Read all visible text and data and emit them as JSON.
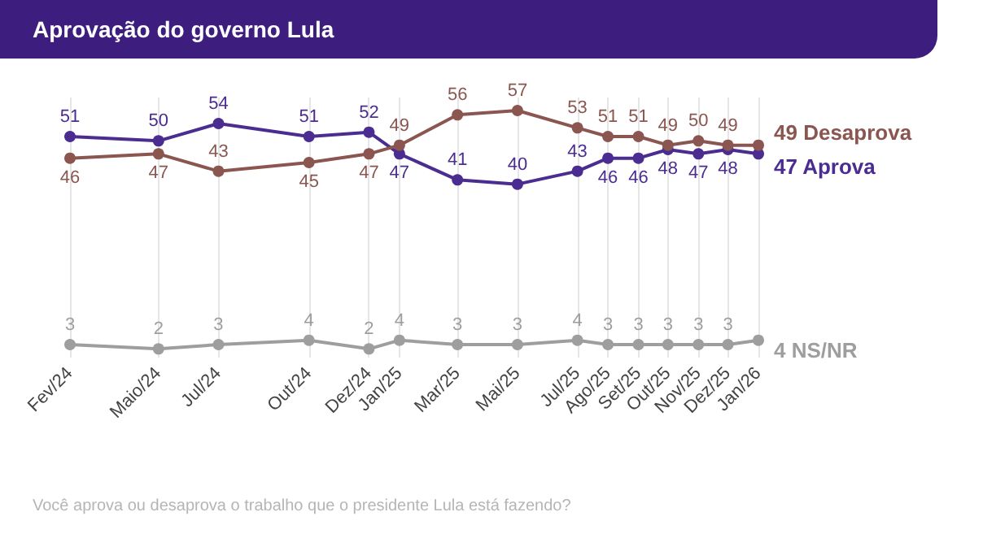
{
  "chart_data": {
    "type": "line",
    "title": "Aprovação do governo Lula",
    "x": [
      "2024-02",
      "2024-05",
      "2024-07",
      "2024-10",
      "2024-12",
      "2025-01",
      "2025-03",
      "2025-05",
      "2025-07",
      "2025-08",
      "2025-09",
      "2025-10",
      "2025-11",
      "2025-12",
      "2026-01"
    ],
    "xlim": [
      "2024-02",
      "2026-01"
    ],
    "xticks": [
      {
        "value": "2024-02",
        "label": "Fev/24"
      },
      {
        "value": "2024-05",
        "label": "Maio/24"
      },
      {
        "value": "2024-07",
        "label": "Jul/24"
      },
      {
        "value": "2024-10",
        "label": "Out/24"
      },
      {
        "value": "2024-12",
        "label": "Dez/24"
      },
      {
        "value": "2025-01",
        "label": "Jan/25"
      },
      {
        "value": "2025-03",
        "label": "Mar/25"
      },
      {
        "value": "2025-05",
        "label": "Mai/25"
      },
      {
        "value": "2025-07",
        "label": "Jul/25"
      },
      {
        "value": "2025-08",
        "label": "Ago/25"
      },
      {
        "value": "2025-09",
        "label": "Set/25"
      },
      {
        "value": "2025-10",
        "label": "Out/25"
      },
      {
        "value": "2025-11",
        "label": "Nov/25"
      },
      {
        "value": "2025-12",
        "label": "Dez/25"
      },
      {
        "value": "2026-01",
        "label": "Jan/26"
      }
    ],
    "ylim": [
      0,
      60
    ],
    "tick_labels": "x",
    "grid": "x",
    "legend": false,
    "marker": "circle",
    "line_style": "solid",
    "series": [
      {
        "name": "Aprova",
        "color": "#4b2c91",
        "values": [
          51,
          50,
          54,
          51,
          52,
          47,
          41,
          40,
          43,
          46,
          46,
          48,
          47,
          48,
          47
        ],
        "value_labels": [
          "51",
          "50",
          "54",
          "51",
          "52",
          "47",
          "41",
          "40",
          "43",
          "46",
          "46",
          "48",
          "47",
          "48",
          "47"
        ]
      },
      {
        "name": "Desaprova",
        "color": "#8b5550",
        "values": [
          46,
          47,
          43,
          45,
          47,
          49,
          56,
          57,
          53,
          51,
          51,
          49,
          50,
          49,
          49
        ],
        "value_labels": [
          "46",
          "47",
          "43",
          "45",
          "47",
          "49",
          "56",
          "57",
          "53",
          "51",
          "51",
          "49",
          "50",
          "49",
          "49"
        ]
      },
      {
        "name": "NS/NR",
        "color": "#9e9e9e",
        "values": [
          3,
          2,
          3,
          4,
          2,
          4,
          3,
          3,
          4,
          3,
          3,
          3,
          3,
          3,
          4
        ],
        "value_labels": [
          "3",
          "2",
          "3",
          "4",
          "2",
          "4",
          "3",
          "3",
          "4",
          "3",
          "3",
          "3",
          "3",
          "3",
          "4"
        ]
      }
    ],
    "annotations": [
      "Você aprova ou desaprova o trabalho que o presidente Lula está fazendo?"
    ]
  }
}
